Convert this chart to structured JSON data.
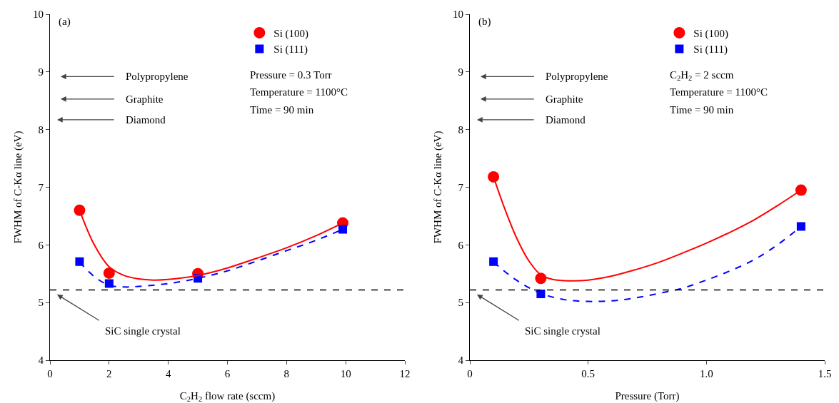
{
  "chart_data": [
    {
      "type": "scatter",
      "xlabel": "C$_{2}$H$_{2}$ flow rate (sccm)",
      "ylabel": "FWHM of C-Kα line (eV)",
      "xlim": [
        0,
        12
      ],
      "xticks": [
        0,
        2,
        4,
        6,
        8,
        10,
        12
      ],
      "ylim": [
        4,
        10
      ],
      "yticks": [
        4,
        5,
        6,
        7,
        8,
        9,
        10
      ],
      "grid": false,
      "legend": "top right",
      "series": [
        {
          "name": "Si (100)",
          "type": "scatter",
          "marker": "circle",
          "color": "#ff0000",
          "x": [
            1,
            2,
            5,
            9.9
          ],
          "values": [
            6.6,
            5.51,
            5.5,
            6.38
          ]
        },
        {
          "name": "Si (111)",
          "type": "scatter",
          "marker": "square",
          "color": "#0000ff",
          "x": [
            1,
            2,
            5,
            9.9
          ],
          "values": [
            5.71,
            5.33,
            5.42,
            6.27
          ]
        },
        {
          "type": "line",
          "line_style": "solid",
          "color": "#ff0000",
          "x": [
            1,
            1.5,
            2,
            2.5,
            3,
            3.5,
            4,
            5,
            6,
            7,
            8,
            9,
            9.9
          ],
          "values": [
            6.6,
            6.0,
            5.62,
            5.47,
            5.41,
            5.39,
            5.4,
            5.47,
            5.6,
            5.77,
            5.95,
            6.16,
            6.38
          ]
        },
        {
          "type": "line",
          "line_style": "dashed",
          "color": "#0000ff",
          "x": [
            1,
            1.5,
            2,
            2.5,
            3,
            4,
            5,
            6,
            7,
            8,
            9,
            9.9
          ],
          "values": [
            5.7,
            5.45,
            5.3,
            5.27,
            5.28,
            5.33,
            5.42,
            5.55,
            5.72,
            5.9,
            6.08,
            6.27
          ]
        }
      ],
      "ref_lines": [
        {
          "axis": "y",
          "value": 5.22,
          "color": "#000000",
          "line_style": "dashed"
        }
      ],
      "annotations": [
        "(a)",
        "Pressure = 0.3 Torr",
        "Temperature = 1100°C",
        "Time = 90 min",
        "Polypropylene",
        "Graphite",
        "Diamond",
        "SiC single crystal"
      ]
    },
    {
      "type": "scatter",
      "xlabel": "Pressure (Torr)",
      "ylabel": "FWHM of C-Kα line (eV)",
      "xlim": [
        0,
        1.5
      ],
      "xticks": [
        0,
        0.5,
        {
          "value": 1,
          "label": "1.0"
        },
        1.5
      ],
      "ylim": [
        4,
        10
      ],
      "yticks": [
        4,
        5,
        6,
        7,
        8,
        9,
        10
      ],
      "grid": false,
      "legend": "top right",
      "series": [
        {
          "name": "Si (100)",
          "type": "scatter",
          "marker": "circle",
          "color": "#ff0000",
          "x": [
            0.1,
            0.3,
            1.4
          ],
          "values": [
            7.18,
            5.42,
            6.95
          ]
        },
        {
          "name": "Si (111)",
          "type": "scatter",
          "marker": "square",
          "color": "#0000ff",
          "x": [
            0.1,
            0.3,
            1.4
          ],
          "values": [
            5.71,
            5.15,
            6.32
          ]
        },
        {
          "type": "line",
          "line_style": "solid",
          "color": "#ff0000",
          "x": [
            0.1,
            0.15,
            0.2,
            0.25,
            0.3,
            0.35,
            0.4,
            0.5,
            0.6,
            0.7,
            0.8,
            0.9,
            1.0,
            1.1,
            1.2,
            1.3,
            1.4
          ],
          "values": [
            7.18,
            6.6,
            6.1,
            5.72,
            5.48,
            5.4,
            5.38,
            5.39,
            5.46,
            5.57,
            5.7,
            5.86,
            6.03,
            6.22,
            6.43,
            6.68,
            6.95
          ]
        },
        {
          "type": "line",
          "line_style": "dashed",
          "color": "#0000ff",
          "x": [
            0.1,
            0.2,
            0.3,
            0.4,
            0.5,
            0.6,
            0.7,
            0.8,
            0.9,
            1.0,
            1.1,
            1.2,
            1.3,
            1.4
          ],
          "values": [
            5.7,
            5.38,
            5.16,
            5.05,
            5.02,
            5.03,
            5.08,
            5.16,
            5.25,
            5.39,
            5.55,
            5.74,
            6.0,
            6.32
          ]
        }
      ],
      "ref_lines": [
        {
          "axis": "y",
          "value": 5.22,
          "color": "#000000",
          "line_style": "dashed"
        }
      ],
      "annotations": [
        "(b)",
        "C$_{2}$H$_{2}$ = 2 sccm",
        "Temperature = 1100°C",
        "Time = 90 min",
        "Polypropylene",
        "Graphite",
        "Diamond",
        "SiC single crystal"
      ]
    }
  ]
}
